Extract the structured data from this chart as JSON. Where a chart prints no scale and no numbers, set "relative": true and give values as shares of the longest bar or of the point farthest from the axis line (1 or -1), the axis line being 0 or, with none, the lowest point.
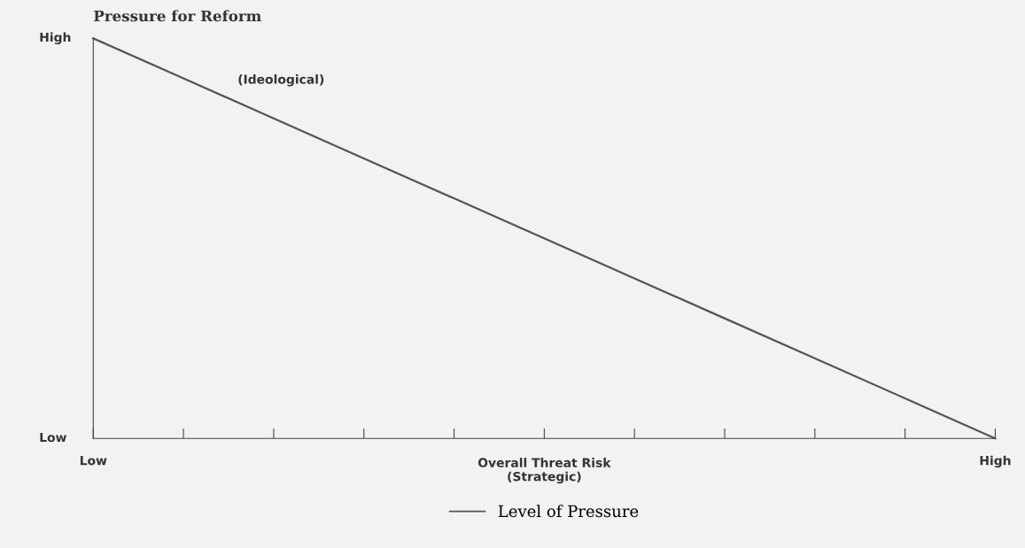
{
  "chart_data": {
    "type": "line",
    "relative": true,
    "ylabel": "Pressure for Reform",
    "xlabel": "Overall Threat Risk\n(Strategic)",
    "annotations": [
      "(Ideological)",
      "High",
      "Low"
    ],
    "categories": [
      "Low",
      null,
      null,
      null,
      null,
      null,
      null,
      null,
      null,
      null,
      "High"
    ],
    "series": [
      {
        "name": "Level of Pressure",
        "color": "#555555",
        "values": [
          1,
          0.9,
          0.8,
          0.7,
          0.6,
          0.5,
          0.4,
          0.3,
          0.2,
          0.1,
          0
        ]
      }
    ],
    "grid": false,
    "legend": "bottom",
    "line_style": "solid",
    "marker": "none"
  }
}
